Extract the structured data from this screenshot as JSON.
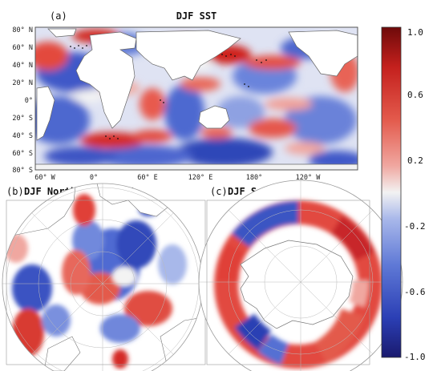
{
  "panel_a": {
    "letter": "(a)",
    "title": "DJF SST",
    "lat_labels": [
      "80° N",
      "60° N",
      "40° N",
      "20° N",
      "0°",
      "20° S",
      "40° S",
      "60° S",
      "80° S"
    ],
    "lon_labels": [
      "60° W",
      "0°",
      "60° E",
      "120° E",
      "180°",
      "120° W"
    ]
  },
  "panel_b": {
    "letter": "(b)",
    "title": "DJF North Polar SIC"
  },
  "panel_c": {
    "letter": "(c)",
    "title": "DJF South Polar SIC"
  },
  "colorbar": {
    "labels": [
      "1.0",
      "0.6",
      "0.2",
      "-0.2",
      "-0.6",
      "-1.0"
    ],
    "min": -1.0,
    "max": 1.0,
    "colors": [
      "#1a1a6e",
      "#2b3fb5",
      "#5f79d6",
      "#a9b8ea",
      "#f2f2f2",
      "#f0a7a0",
      "#e35a4c",
      "#c4201d",
      "#6e0a0a"
    ]
  }
}
